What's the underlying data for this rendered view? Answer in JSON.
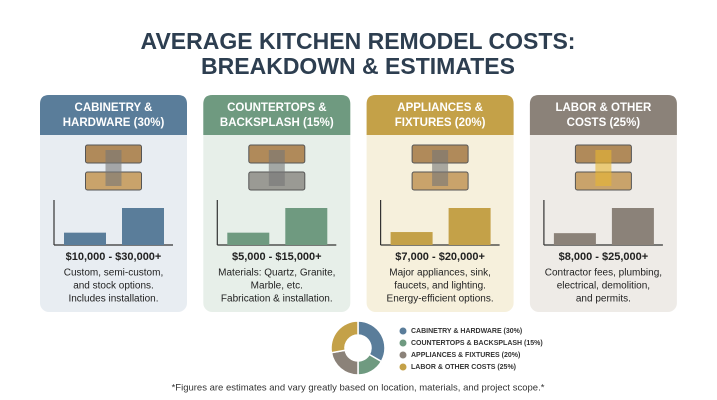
{
  "title_lines": [
    "AVERAGE KITCHEN REMODEL COSTS:",
    "BREAKDOWN & ESTIMATES"
  ],
  "cards": [
    {
      "title_lines": [
        "CABINETRY &",
        "HARDWARE (30%)"
      ],
      "color": "#5a7d9a",
      "background": "#e8edf2",
      "range": {
        "low": 10000,
        "high": 30000,
        "label": "$10,000 - $30,000+"
      },
      "description": [
        "Custom, semi-custom,",
        "and stock options.",
        "Includes installation."
      ]
    },
    {
      "title_lines": [
        "COUNTERTOPS &",
        "BACKSPLASH (15%)"
      ],
      "color": "#6f9a80",
      "background": "#e7efe9",
      "range": {
        "low": 5000,
        "high": 15000,
        "label": "$5,000 - $15,000+"
      },
      "description": [
        "Materials: Quartz, Granite,",
        "Marble, etc.",
        "Fabrication & installation."
      ]
    },
    {
      "title_lines": [
        "APPLIANCES &",
        "FIXTURES (20%)"
      ],
      "color": "#c4a148",
      "background": "#f6f0dc",
      "range": {
        "low": 7000,
        "high": 20000,
        "label": "$7,000 - $20,000+"
      },
      "description": [
        "Major appliances, sink,",
        "faucets, and lighting.",
        "Energy-efficient options."
      ]
    },
    {
      "title_lines": [
        "LABOR & OTHER",
        "COSTS (25%)"
      ],
      "color": "#8b8279",
      "background": "#eeebe7",
      "range": {
        "low": 8000,
        "high": 25000,
        "label": "$8,000 - $25,000+"
      },
      "description": [
        "Contractor fees, plumbing,",
        "electrical, demolition,",
        "and permits."
      ]
    }
  ],
  "chart_data": {
    "type": "pie",
    "donut": true,
    "categories": [
      "CABINETRY & HARDWARE (30%)",
      "COUNTERTOPS & BACKSPLASH (15%)",
      "APPLIANCES & FIXTURES (20%)",
      "LABOR & OTHER COSTS (25%)"
    ],
    "values": [
      30,
      15,
      20,
      25
    ],
    "colors": [
      "#5a7d9a",
      "#6f9a80",
      "#8b8279",
      "#c4a148"
    ]
  },
  "footnote": "*Figures are estimates and vary greatly based on location, materials, and project scope.*"
}
